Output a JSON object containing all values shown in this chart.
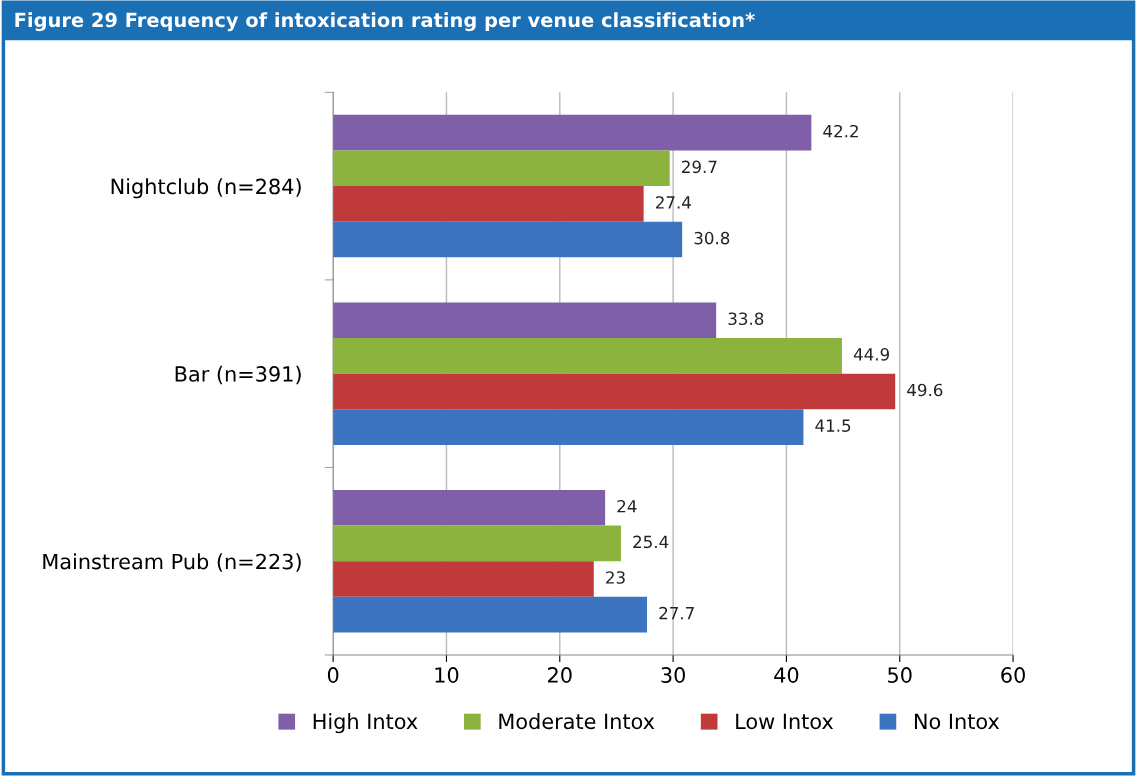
{
  "chart_data": {
    "type": "bar",
    "orientation": "horizontal",
    "title": "Figure 29 Frequency of intoxication rating per venue classification*",
    "categories": [
      "Nightclub (n=284)",
      "Bar (n=391)",
      "Mainstream Pub (n=223)"
    ],
    "series": [
      {
        "name": "High Intox",
        "color": "#7f5fa8",
        "values": [
          42.2,
          33.8,
          24
        ]
      },
      {
        "name": "Moderate Intox",
        "color": "#8cb33e",
        "values": [
          29.7,
          44.9,
          25.4
        ]
      },
      {
        "name": "Low Intox",
        "color": "#c0393b",
        "values": [
          27.4,
          49.6,
          23
        ]
      },
      {
        "name": "No Intox",
        "color": "#3d74c0",
        "values": [
          30.8,
          41.5,
          27.7
        ]
      }
    ],
    "xlim": [
      0,
      60
    ],
    "xticks": [
      0,
      10,
      20,
      30,
      40,
      50,
      60
    ],
    "grid": "x",
    "legend": "bottom",
    "data_labels": true
  }
}
